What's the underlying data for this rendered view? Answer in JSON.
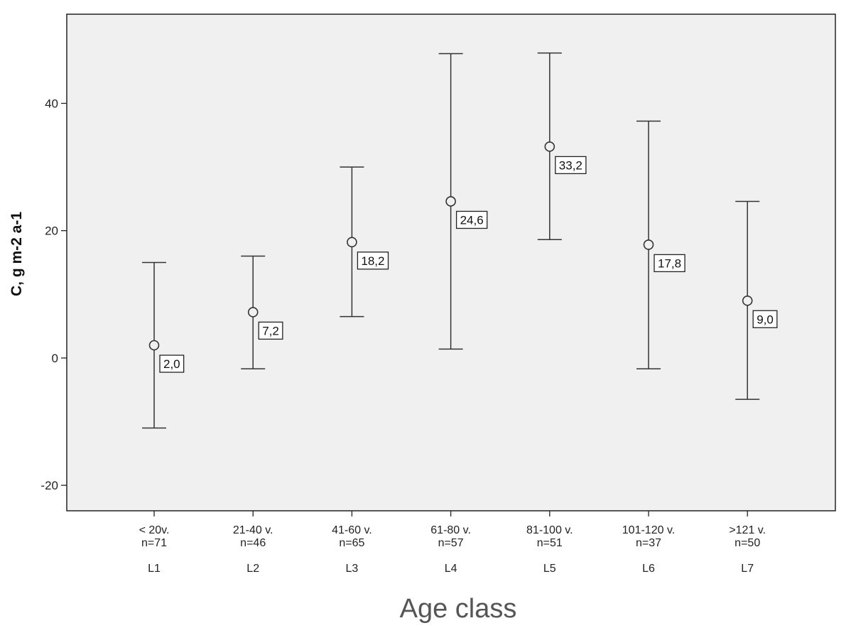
{
  "chart_data": {
    "type": "errorbar",
    "title": "",
    "xlabel": "Age class",
    "ylabel": "C, g m-2 a-1",
    "ylim": [
      -24,
      54
    ],
    "yticks": [
      -20,
      0,
      20,
      40
    ],
    "grid": false,
    "categories": [
      {
        "line1": "< 20v.",
        "line2": "n=71",
        "line3": "L1"
      },
      {
        "line1": "21-40 v.",
        "line2": "n=46",
        "line3": "L2"
      },
      {
        "line1": "41-60 v.",
        "line2": "n=65",
        "line3": "L3"
      },
      {
        "line1": "61-80 v.",
        "line2": "n=57",
        "line3": "L4"
      },
      {
        "line1": "81-100 v.",
        "line2": "n=51",
        "line3": "L5"
      },
      {
        "line1": "101-120 v.",
        "line2": "n=37",
        "line3": "L6"
      },
      {
        "line1": ">121 v.",
        "line2": "n=50",
        "line3": "L7"
      }
    ],
    "points": [
      {
        "mean": 2.0,
        "label": "2,0",
        "low": -11.0,
        "high": 15.0
      },
      {
        "mean": 7.2,
        "label": "7,2",
        "low": -1.7,
        "high": 16.0
      },
      {
        "mean": 18.2,
        "label": "18,2",
        "low": 6.5,
        "high": 30.0
      },
      {
        "mean": 24.6,
        "label": "24,6",
        "low": 1.4,
        "high": 47.8
      },
      {
        "mean": 33.2,
        "label": "33,2",
        "low": 18.6,
        "high": 47.9
      },
      {
        "mean": 17.8,
        "label": "17,8",
        "low": -1.7,
        "high": 37.2
      },
      {
        "mean": 9.0,
        "label": "9,0",
        "low": -6.5,
        "high": 24.6
      }
    ],
    "colors": {
      "plot_background": "#f0f0f0",
      "frame": "#222222",
      "bar": "#333333"
    }
  }
}
